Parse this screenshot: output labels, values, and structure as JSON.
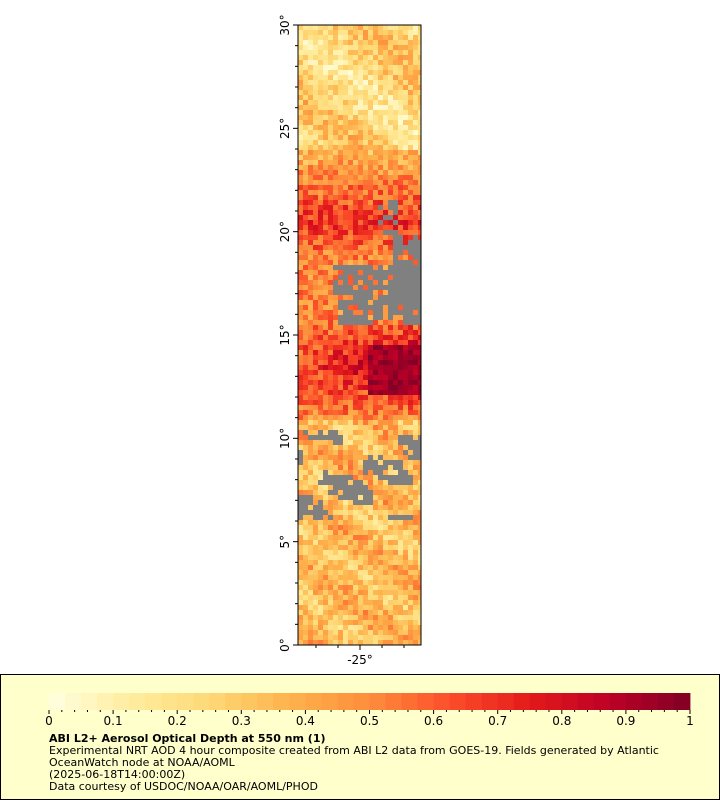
{
  "map": {
    "lat_ticks": [
      "0°",
      "5°",
      "10°",
      "15°",
      "20°",
      "25°",
      "30°"
    ],
    "lon_ticks": [
      "-25°"
    ],
    "no_data_color": "#808080",
    "lat_range": [
      0,
      30
    ],
    "lon_tick_value": -25
  },
  "colorbar": {
    "tick_labels": [
      "0",
      "0.1",
      "0.2",
      "0.3",
      "0.4",
      "0.5",
      "0.6",
      "0.7",
      "0.8",
      "0.9",
      "1"
    ],
    "range": [
      0,
      1
    ],
    "colors": [
      "#ffffe0",
      "#ffeda0",
      "#fed976",
      "#feb24c",
      "#fd8d3c",
      "#fc4e2a",
      "#e31a1c",
      "#bd0026",
      "#800026"
    ]
  },
  "legend": {
    "title": "ABI L2+ Aerosol Optical Depth at 550 nm (1)",
    "line1": "Experimental NRT AOD 4 hour composite created from ABI L2 data from GOES-19. Fields generated by Atlantic OceanWatch node at NOAA/AOML",
    "line2": "(2025-06-18T14:00:00Z)",
    "line3": "Data courtesy of USDOC/NOAA/OAR/AOML/PHOD"
  }
}
